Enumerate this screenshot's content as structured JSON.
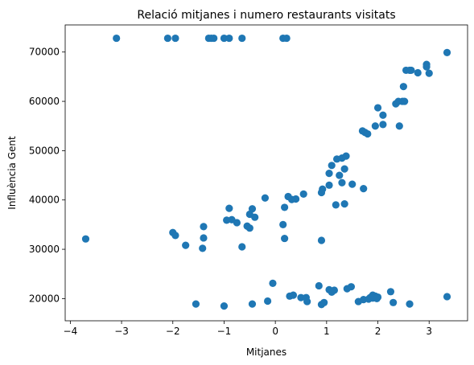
{
  "chart_data": {
    "type": "scatter",
    "title": "Relació mitjanes i numero restaurants visitats",
    "xlabel": "Mitjanes",
    "ylabel": "Influència Gent",
    "xlim": [
      -4.1,
      3.75
    ],
    "ylim": [
      15500,
      75500
    ],
    "xticks": [
      -4,
      -3,
      -2,
      -1,
      0,
      1,
      2,
      3
    ],
    "yticks": [
      20000,
      30000,
      40000,
      50000,
      60000,
      70000
    ],
    "xtick_labels": [
      "−4",
      "−3",
      "−2",
      "−1",
      "0",
      "1",
      "2",
      "3"
    ],
    "ytick_labels": [
      "20000",
      "30000",
      "40000",
      "50000",
      "60000",
      "70000"
    ],
    "grid": false,
    "color": "#1f77b4",
    "series": [
      {
        "x": [
          -3.1,
          -2.1,
          -1.95,
          -1.3,
          -1.25,
          -1.2,
          -1.0,
          -0.9,
          -0.65,
          0.15,
          0.22,
          3.35,
          2.95,
          2.95,
          3.0,
          2.78,
          2.65,
          2.62,
          2.55,
          2.4,
          2.48,
          2.52,
          2.35,
          2.5,
          2.42,
          2.0,
          2.1,
          1.95,
          2.1,
          1.7,
          1.75,
          1.8,
          1.3,
          1.38,
          1.35,
          1.2,
          1.25,
          1.1,
          1.05,
          1.05,
          1.5,
          1.3,
          1.35,
          1.72,
          0.92,
          0.9,
          1.18,
          0.55,
          0.4,
          0.32,
          0.25,
          0.18,
          0.15,
          -0.2,
          -0.5,
          -0.4,
          -0.55,
          -0.75,
          -0.85,
          -0.95,
          -0.9,
          -0.45,
          -0.5,
          -0.65,
          -2.0,
          -1.95,
          -1.75,
          -1.4,
          -1.4,
          -1.42,
          -3.7,
          0.18,
          0.9,
          -0.05,
          0.85,
          1.4,
          1.48,
          2.25,
          1.85,
          1.9,
          1.95,
          2.0,
          0.28,
          0.35,
          0.5,
          0.6,
          0.62,
          0.9,
          0.95,
          1.05,
          1.15,
          1.1,
          1.62,
          1.72,
          1.82,
          1.9,
          1.98,
          2.3,
          2.62,
          3.35,
          -1.55,
          -1.0,
          -0.45,
          -0.15
        ]
      },
      {
        "y": [
          72800,
          72800,
          72800,
          72800,
          72800,
          72800,
          72800,
          72800,
          72800,
          72800,
          72800,
          69900,
          67500,
          67000,
          65700,
          65800,
          66300,
          66300,
          66300,
          60000,
          60000,
          60000,
          59500,
          63000,
          55000,
          58700,
          57200,
          55000,
          55300,
          54000,
          53700,
          53400,
          48500,
          48900,
          46300,
          48300,
          45000,
          47000,
          45400,
          43000,
          43200,
          43500,
          39200,
          42300,
          42200,
          41500,
          39000,
          41200,
          40200,
          40100,
          40700,
          38500,
          35000,
          40400,
          37100,
          36500,
          34700,
          35400,
          36000,
          35900,
          38300,
          38200,
          34300,
          30500,
          33400,
          32800,
          30800,
          34600,
          32300,
          30200,
          32100,
          32200,
          31800,
          23100,
          22600,
          22000,
          22400,
          21400,
          20200,
          20700,
          20500,
          20300,
          20500,
          20700,
          20200,
          20200,
          19400,
          18800,
          19200,
          21800,
          21700,
          21300,
          19400,
          19800,
          19900,
          20100,
          20000,
          19200,
          18900,
          20400,
          18900,
          18500,
          18900,
          19500
        ]
      }
    ]
  }
}
